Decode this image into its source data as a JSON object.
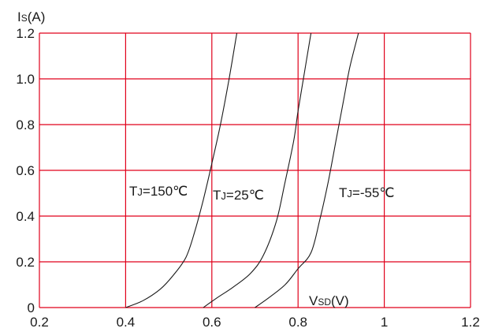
{
  "chart_data": {
    "type": "line",
    "title": "",
    "xlabel": "VSD(V)",
    "xlabel_main": "V",
    "xlabel_sub": "SD",
    "xlabel_unit": "(V)",
    "ylabel": "IS(A)",
    "ylabel_main": "I",
    "ylabel_sub": "S",
    "ylabel_unit": "(A)",
    "xlim": [
      0.2,
      1.2
    ],
    "ylim": [
      0,
      1.2
    ],
    "x_ticks": [
      0.2,
      0.4,
      0.6,
      0.8,
      1.0,
      1.2
    ],
    "x_tick_labels": [
      "0.2",
      "0.4",
      "0.6",
      "0.8",
      "1",
      "1.2"
    ],
    "y_ticks": [
      0,
      0.2,
      0.4,
      0.6,
      0.8,
      1.0,
      1.2
    ],
    "y_tick_labels": [
      "0",
      "0.2",
      "0.4",
      "0.6",
      "0.8",
      "1.0",
      "1.2"
    ],
    "grid": true,
    "grid_color": "#e0001a",
    "line_color": "#1a1a1a",
    "series": [
      {
        "label_main": "T",
        "label_sub": "J",
        "label_rest": "=150℃",
        "x": [
          0.4,
          0.44,
          0.48,
          0.51,
          0.54,
          0.56,
          0.58,
          0.6,
          0.62,
          0.64,
          0.658
        ],
        "y": [
          0,
          0.03,
          0.08,
          0.14,
          0.22,
          0.33,
          0.47,
          0.63,
          0.8,
          1.0,
          1.2
        ]
      },
      {
        "label_main": "T",
        "label_sub": "J",
        "label_rest": "=25℃",
        "x": [
          0.58,
          0.61,
          0.65,
          0.69,
          0.72,
          0.75,
          0.77,
          0.79,
          0.8,
          0.815,
          0.83
        ],
        "y": [
          0,
          0.04,
          0.09,
          0.15,
          0.23,
          0.38,
          0.55,
          0.73,
          0.86,
          1.03,
          1.2
        ]
      },
      {
        "label_main": "T",
        "label_sub": "J",
        "label_rest": "=-55℃",
        "x": [
          0.7,
          0.73,
          0.77,
          0.8,
          0.83,
          0.85,
          0.87,
          0.89,
          0.905,
          0.92,
          0.94
        ],
        "y": [
          0,
          0.04,
          0.1,
          0.17,
          0.24,
          0.38,
          0.55,
          0.75,
          0.9,
          1.05,
          1.2
        ]
      }
    ]
  }
}
